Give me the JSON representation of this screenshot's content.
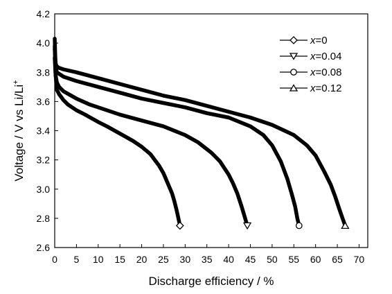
{
  "chart_data": {
    "type": "line",
    "xlabel": "Discharge efficiency / %",
    "ylabel_main": "Voltage / V vs Li/Li",
    "ylabel_sup": "+",
    "xlim": [
      0,
      72
    ],
    "ylim": [
      2.6,
      4.2
    ],
    "xticks": [
      0,
      5,
      10,
      15,
      20,
      25,
      30,
      35,
      40,
      45,
      50,
      55,
      60,
      65,
      70
    ],
    "yticks": [
      2.6,
      2.8,
      3.0,
      3.2,
      3.4,
      3.6,
      3.8,
      4.0,
      4.2
    ],
    "ytick_labels": [
      "2.6",
      "2.8",
      "3.0",
      "3.2",
      "3.4",
      "3.6",
      "3.8",
      "4.0",
      "4.2"
    ],
    "legend_position": "top-right",
    "series": [
      {
        "name": "x=0",
        "legend_var": "x",
        "legend_value": "=0",
        "marker": "diamond",
        "x": [
          0,
          0.2,
          0.5,
          1,
          2,
          3,
          5,
          7,
          10,
          12,
          15,
          18,
          20,
          22,
          24,
          25,
          26,
          27,
          27.5,
          28,
          28.3,
          28.6,
          28.8
        ],
        "y": [
          3.98,
          3.78,
          3.68,
          3.65,
          3.61,
          3.58,
          3.54,
          3.51,
          3.46,
          3.43,
          3.38,
          3.33,
          3.29,
          3.24,
          3.16,
          3.11,
          3.04,
          2.97,
          2.92,
          2.86,
          2.82,
          2.78,
          2.75
        ]
      },
      {
        "name": "x=0.04",
        "legend_var": "x",
        "legend_value": "=0.04",
        "marker": "triangle-down",
        "x": [
          0,
          0.2,
          0.5,
          1,
          2,
          5,
          8,
          10,
          15,
          20,
          25,
          30,
          33,
          36,
          38,
          40,
          41,
          42,
          43,
          43.5,
          44,
          44.3
        ],
        "y": [
          3.9,
          3.78,
          3.73,
          3.7,
          3.67,
          3.62,
          3.58,
          3.56,
          3.51,
          3.47,
          3.43,
          3.37,
          3.32,
          3.25,
          3.19,
          3.1,
          3.04,
          2.97,
          2.88,
          2.83,
          2.78,
          2.75
        ]
      },
      {
        "name": "x=0.08",
        "legend_var": "x",
        "legend_value": "=0.08",
        "marker": "circle",
        "x": [
          0,
          0.2,
          0.5,
          1,
          2,
          5,
          10,
          15,
          20,
          25,
          30,
          35,
          40,
          45,
          48,
          50,
          52,
          53.5,
          54.5,
          55.3,
          55.8,
          56.2
        ],
        "y": [
          4.03,
          3.84,
          3.8,
          3.79,
          3.77,
          3.74,
          3.7,
          3.66,
          3.62,
          3.59,
          3.56,
          3.52,
          3.49,
          3.43,
          3.37,
          3.3,
          3.19,
          3.07,
          2.97,
          2.88,
          2.8,
          2.75
        ]
      },
      {
        "name": "x=0.12",
        "legend_var": "x",
        "legend_value": "=0.12",
        "marker": "triangle-up",
        "x": [
          0,
          0.2,
          0.5,
          1,
          2,
          5,
          10,
          15,
          20,
          25,
          30,
          35,
          40,
          45,
          50,
          55,
          58,
          60,
          62,
          63.5,
          64.5,
          65.5,
          66.2,
          66.8
        ],
        "y": [
          3.96,
          3.86,
          3.84,
          3.83,
          3.82,
          3.8,
          3.76,
          3.72,
          3.68,
          3.64,
          3.61,
          3.57,
          3.53,
          3.49,
          3.44,
          3.37,
          3.3,
          3.23,
          3.12,
          3.03,
          2.95,
          2.86,
          2.8,
          2.75
        ]
      }
    ]
  }
}
